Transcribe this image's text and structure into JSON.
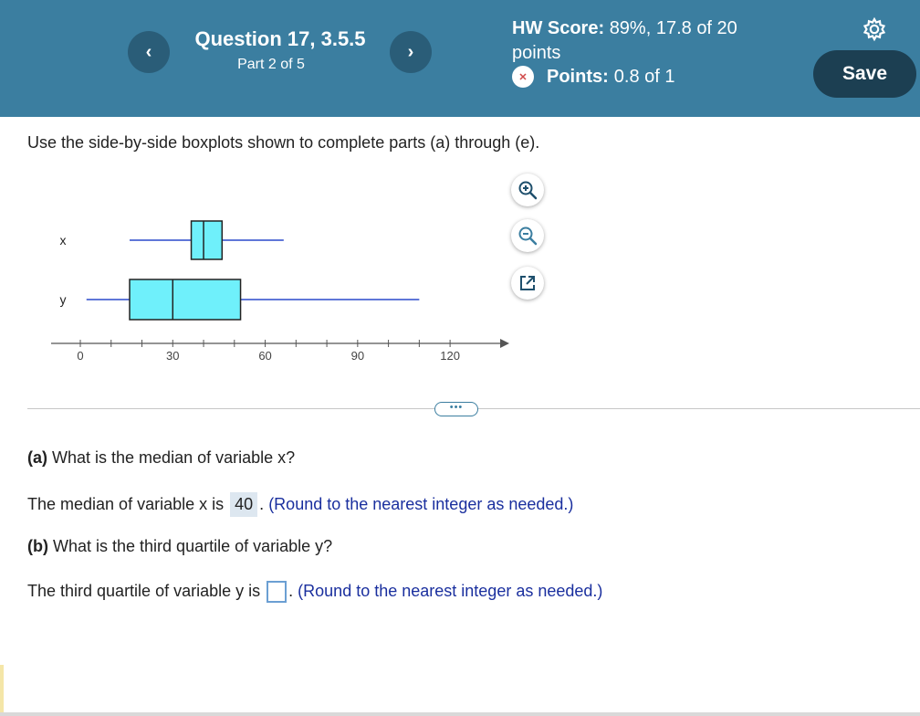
{
  "header": {
    "prev_label": "‹",
    "next_label": "›",
    "question_title": "Question 17, 3.5.5",
    "part": "Part 2 of 5",
    "hw_score_label": "HW Score:",
    "hw_score_value": "89%, 17.8 of 20 points",
    "points_label": "Points:",
    "points_value": "0.8 of 1",
    "save_label": "Save",
    "accent_color": "#3b7ea0"
  },
  "instruction": "Use the side-by-side boxplots shown to complete parts (a) through (e).",
  "tools": [
    "zoom-in-icon",
    "zoom-out-icon",
    "open-external-icon"
  ],
  "more_label": "•••",
  "chart_data": {
    "type": "boxplot",
    "series": [
      {
        "name": "x",
        "min": 16,
        "q1": 36,
        "median": 40,
        "q3": 46,
        "max": 66
      },
      {
        "name": "y",
        "min": 2,
        "q1": 16,
        "median": 30,
        "q3": 52,
        "max": 110
      }
    ],
    "x_ticks": [
      "0",
      "30",
      "60",
      "90",
      "120"
    ],
    "xlim": [
      0,
      125
    ],
    "box_color": "#6ff0fb",
    "whisker_color": "#2b4acb"
  },
  "questions": {
    "a": {
      "label": "(a)",
      "text": "What is the median of variable x?",
      "prefix": "The median of variable x is",
      "answer": "40",
      "suffix": ".",
      "hint": "(Round to the nearest integer as needed.)"
    },
    "b": {
      "label": "(b)",
      "text": "What is the third quartile of variable y?",
      "prefix": "The third quartile of variable y is",
      "answer": "",
      "suffix": ".",
      "hint": "(Round to the nearest integer as needed.)"
    }
  }
}
